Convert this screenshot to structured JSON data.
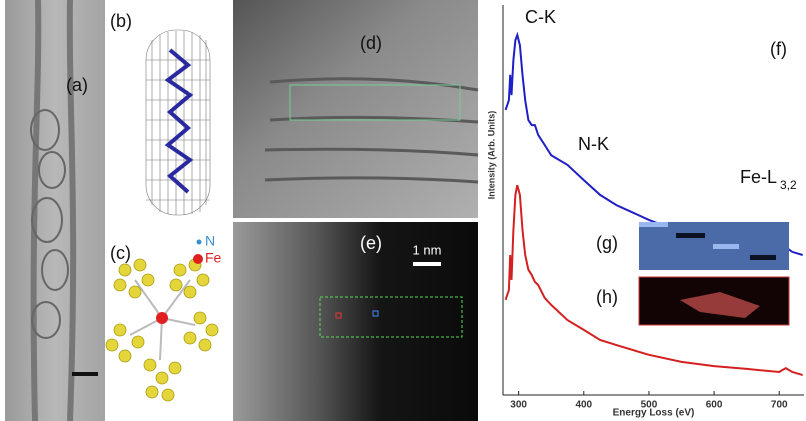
{
  "panels": {
    "a": "(a)",
    "b": "(b)",
    "c": "(c)",
    "d": "(d)",
    "e": "(e)",
    "scale_bar": "1 nm",
    "legend_n": "N",
    "legend_fe": "Fe"
  },
  "chart_data": {
    "type": "line",
    "panel_label": "(f)",
    "inset_labels": [
      "(g)",
      "(h)"
    ],
    "xlabel": "Energy Loss (eV)",
    "ylabel": "Intensity (Arb. Units)",
    "annotations": [
      "C-K",
      "N-K",
      "Fe-L"
    ],
    "annotation_subscript": "3,2",
    "x": [
      280,
      285,
      287,
      289,
      292,
      295,
      298,
      302,
      306,
      310,
      315,
      320,
      325,
      330,
      340,
      350,
      375,
      400,
      425,
      450,
      500,
      550,
      600,
      650,
      700,
      705,
      710,
      720,
      736
    ],
    "series": [
      {
        "color": "#1f1fc8",
        "values": [
          73.1,
          75.6,
          82.1,
          76.9,
          85.9,
          91.0,
          92.3,
          89.7,
          82.1,
          75.6,
          70.5,
          69.2,
          69.2,
          66.7,
          64.1,
          61.5,
          59.0,
          55.1,
          51.3,
          48.7,
          44.9,
          41.8,
          39.7,
          37.9,
          36.7,
          37.2,
          37.9,
          36.7,
          35.9
        ]
      },
      {
        "color": "#d42020",
        "values": [
          24.4,
          26.9,
          35.9,
          29.5,
          42.3,
          51.3,
          53.8,
          51.3,
          42.3,
          35.9,
          32.1,
          30.8,
          29.0,
          28.2,
          24.9,
          23.1,
          19.2,
          16.7,
          14.1,
          12.8,
          10.3,
          8.5,
          7.4,
          6.7,
          5.9,
          6.4,
          6.9,
          5.9,
          5.1
        ]
      }
    ],
    "xlim": [
      276,
      738
    ],
    "ylim": [
      0,
      100
    ],
    "xticks": [
      300,
      400,
      500,
      600,
      700
    ]
  }
}
